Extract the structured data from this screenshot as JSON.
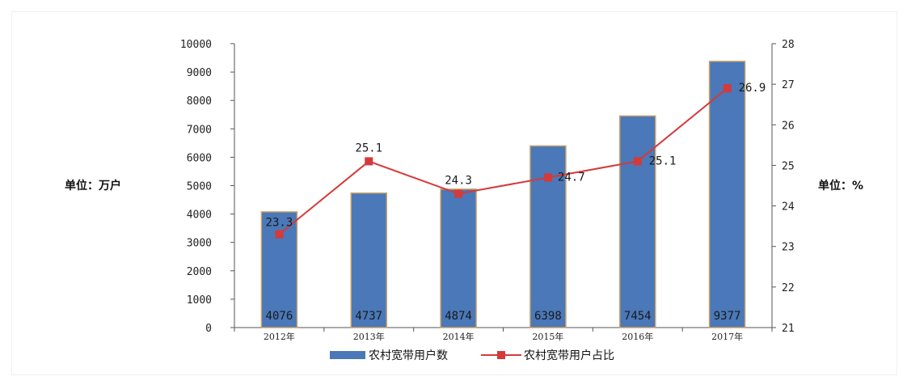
{
  "colors": {
    "bar_fill": "#4a78b8",
    "bar_edge": "#c8a06a",
    "line": "#d43a3a",
    "axis": "#555555"
  },
  "chart_data": {
    "type": "bar",
    "categories": [
      "2012年",
      "2013年",
      "2014年",
      "2015年",
      "2016年",
      "2017年"
    ],
    "series": [
      {
        "name": "农村宽带用户数",
        "type": "bar",
        "axis": "left",
        "values": [
          4076,
          4737,
          4874,
          6398,
          7454,
          9377
        ]
      },
      {
        "name": "农村宽带用户占比",
        "type": "line",
        "axis": "right",
        "values": [
          23.3,
          25.1,
          24.3,
          24.7,
          25.1,
          26.9
        ]
      }
    ],
    "bar_data_labels": [
      "4076",
      "4737",
      "4874",
      "6398",
      "7454",
      "9377"
    ],
    "line_data_labels": [
      "23.3",
      "25.1",
      "24.3",
      "24.7",
      "25.1",
      "26.9"
    ],
    "left_axis": {
      "label": "单位：万户",
      "min": 0,
      "max": 10000,
      "ticks": [
        "0",
        "1000",
        "2000",
        "3000",
        "4000",
        "5000",
        "6000",
        "7000",
        "8000",
        "9000",
        "10000"
      ]
    },
    "right_axis": {
      "label": "单位：%",
      "min": 21,
      "max": 28,
      "ticks": [
        "21",
        "22",
        "23",
        "24",
        "25",
        "26",
        "27",
        "28"
      ]
    },
    "grid": false,
    "legend": {
      "position": "bottom",
      "entries": [
        "农村宽带用户数",
        "农村宽带用户占比"
      ]
    }
  }
}
